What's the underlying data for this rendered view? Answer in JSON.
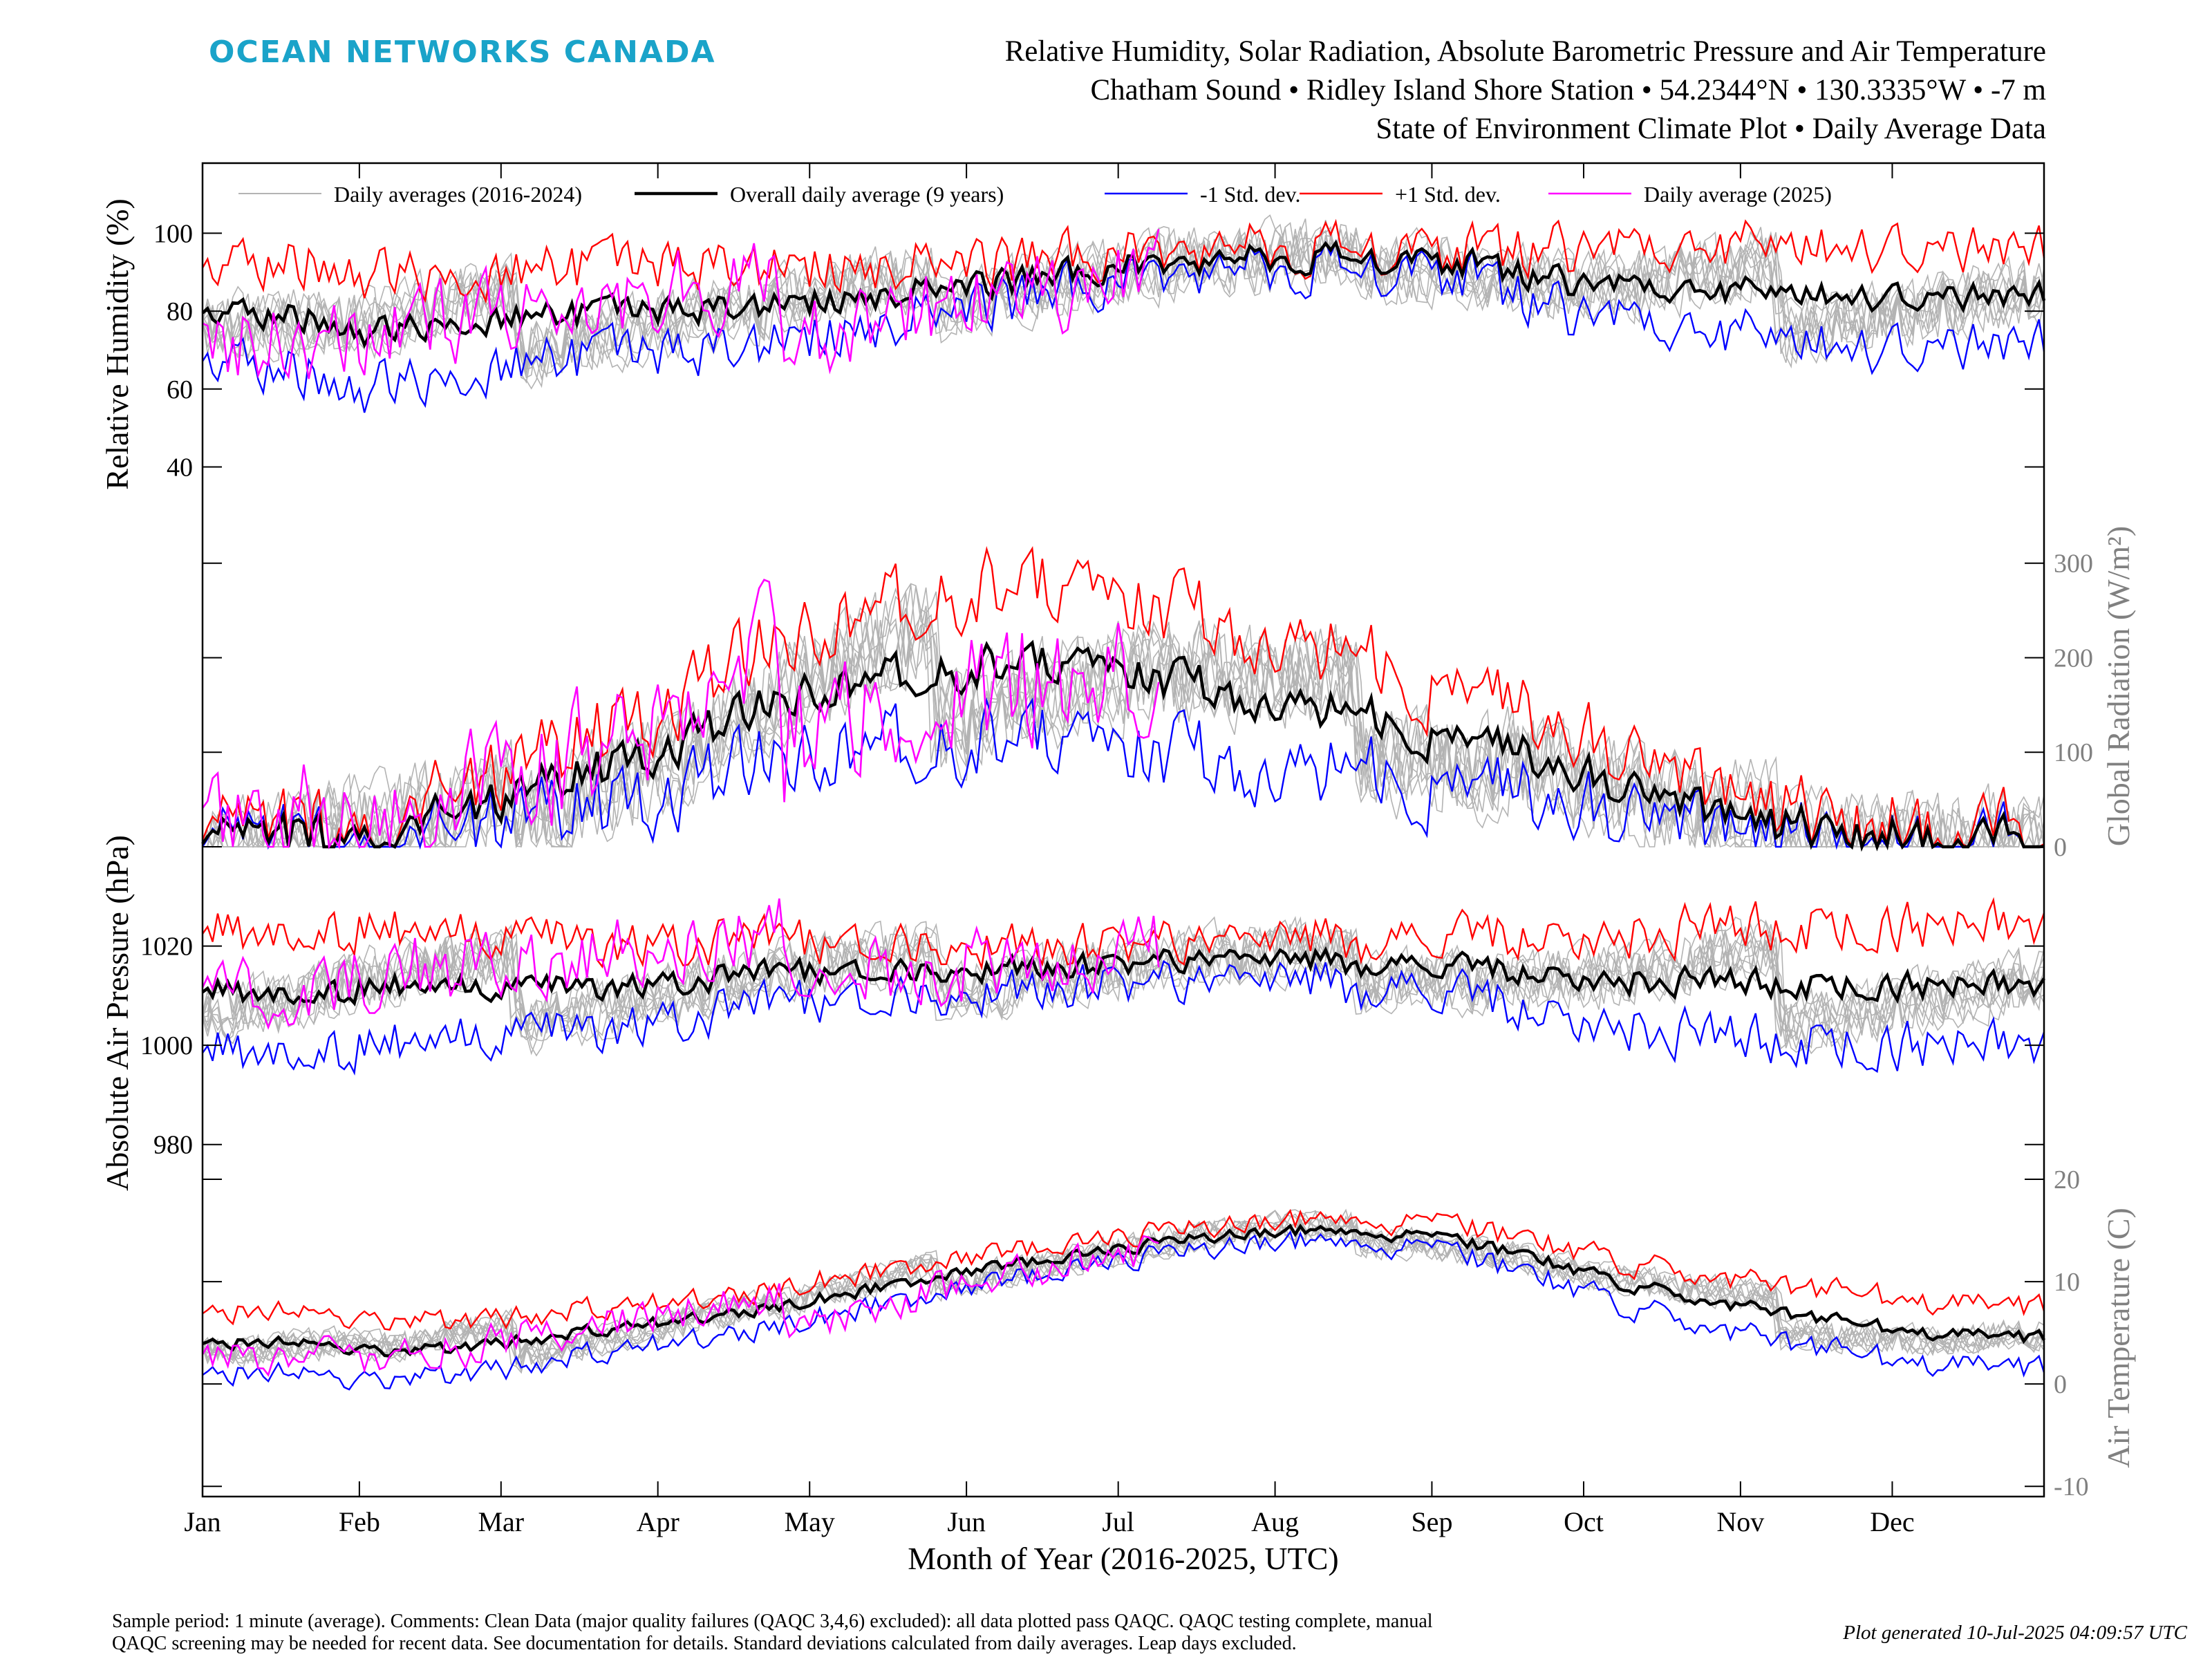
{
  "header": {
    "logo_text": "OCEAN NETWORKS CANADA",
    "logo_color": "#1aa3c9",
    "title_lines": [
      "Relative Humidity, Solar Radiation, Absolute Barometric Pressure and Air Temperature",
      "Chatham Sound • Ridley Island Shore Station • 54.2344°N • 130.3335°W • -7 m",
      "State of Environment Climate Plot • Daily Average Data"
    ]
  },
  "footer": {
    "note_line_1": "Sample period: 1 minute (average). Comments: Clean Data (major quality failures (QAQC 3,4,6) excluded): all data plotted pass QAQC. QAQC testing complete, manual",
    "note_line_2": "QAQC screening may be needed for recent data. See documentation for details. Standard deviations calculated from daily averages. Leap days excluded.",
    "plot_generated": "Plot generated 10-Jul-2025 04:09:57 UTC"
  },
  "chart_data": {
    "type": "line",
    "x_axis": {
      "label": "Month of Year (2016-2025, UTC)",
      "unit": "day of year",
      "range": [
        1,
        365
      ],
      "ticks": [
        {
          "label": "Jan",
          "day": 1
        },
        {
          "label": "Feb",
          "day": 32
        },
        {
          "label": "Mar",
          "day": 60
        },
        {
          "label": "Apr",
          "day": 91
        },
        {
          "label": "May",
          "day": 121
        },
        {
          "label": "Jun",
          "day": 152
        },
        {
          "label": "Jul",
          "day": 182
        },
        {
          "label": "Aug",
          "day": 213
        },
        {
          "label": "Sep",
          "day": 244
        },
        {
          "label": "Oct",
          "day": 274
        },
        {
          "label": "Nov",
          "day": 305
        },
        {
          "label": "Dec",
          "day": 335
        }
      ]
    },
    "legend": {
      "placement": "top",
      "entries": [
        {
          "label": "Daily averages (2016-2024)",
          "color": "#b3b3b3"
        },
        {
          "label": "Overall daily average (9 years)",
          "color": "#000000"
        },
        {
          "label": "-1 Std. dev.",
          "color": "#0000ff"
        },
        {
          "label": "+1 Std. dev.",
          "color": "#ff0000"
        },
        {
          "label": "Daily average (2025)",
          "color": "#ff00ff"
        }
      ]
    },
    "colors": {
      "historical": "#b3b3b3",
      "mean": "#000000",
      "minus_sd": "#0000ff",
      "plus_sd": "#ff0000",
      "current_year": "#ff00ff",
      "right_axis_text": "#808080"
    },
    "current_year_last_day": 190,
    "panels": [
      {
        "id": "humidity",
        "ylabel": "Relative Humidity (%)",
        "side": "left",
        "ylim": [
          25,
          118
        ],
        "ticks": [
          40,
          60,
          80,
          100
        ],
        "keypoints": [
          [
            1,
            80
          ],
          [
            20,
            79
          ],
          [
            35,
            74
          ],
          [
            50,
            78
          ],
          [
            75,
            79
          ],
          [
            100,
            80
          ],
          [
            125,
            83
          ],
          [
            150,
            86
          ],
          [
            170,
            89
          ],
          [
            190,
            92
          ],
          [
            205,
            93
          ],
          [
            225,
            94
          ],
          [
            245,
            93
          ],
          [
            260,
            90
          ],
          [
            275,
            86
          ],
          [
            300,
            85
          ],
          [
            330,
            84
          ],
          [
            365,
            84
          ]
        ],
        "sd_keypoints": [
          [
            1,
            12
          ],
          [
            30,
            15
          ],
          [
            60,
            12
          ],
          [
            100,
            11
          ],
          [
            130,
            8
          ],
          [
            160,
            5
          ],
          [
            190,
            3
          ],
          [
            220,
            2.5
          ],
          [
            250,
            3
          ],
          [
            270,
            8
          ],
          [
            300,
            11
          ],
          [
            330,
            13
          ],
          [
            365,
            12
          ]
        ],
        "noise": 3.5,
        "current_offset": -2
      },
      {
        "id": "radiation",
        "ylabel": "Global Radiation (W/m²)",
        "side": "right",
        "ylim": [
          0,
          340
        ],
        "ticks": [
          0,
          100,
          200,
          300
        ],
        "keypoints": [
          [
            1,
            6
          ],
          [
            20,
            10
          ],
          [
            40,
            22
          ],
          [
            60,
            45
          ],
          [
            80,
            85
          ],
          [
            100,
            120
          ],
          [
            120,
            165
          ],
          [
            140,
            180
          ],
          [
            160,
            190
          ],
          [
            180,
            195
          ],
          [
            200,
            170
          ],
          [
            220,
            150
          ],
          [
            240,
            125
          ],
          [
            260,
            100
          ],
          [
            275,
            70
          ],
          [
            290,
            45
          ],
          [
            305,
            28
          ],
          [
            320,
            15
          ],
          [
            340,
            8
          ],
          [
            365,
            6
          ]
        ],
        "sd_keypoints": [
          [
            1,
            6
          ],
          [
            30,
            10
          ],
          [
            60,
            25
          ],
          [
            90,
            45
          ],
          [
            120,
            65
          ],
          [
            150,
            80
          ],
          [
            180,
            80
          ],
          [
            210,
            70
          ],
          [
            240,
            55
          ],
          [
            270,
            40
          ],
          [
            300,
            20
          ],
          [
            330,
            10
          ],
          [
            365,
            7
          ]
        ],
        "noise": 22,
        "current_offset": 10
      },
      {
        "id": "pressure",
        "ylabel": "Absolute Air Pressure (hPa)",
        "side": "left",
        "ylim": [
          973,
          1040
        ],
        "ticks": [
          980,
          1000,
          1020
        ],
        "keypoints": [
          [
            1,
            1011
          ],
          [
            20,
            1010
          ],
          [
            40,
            1012
          ],
          [
            60,
            1011
          ],
          [
            90,
            1012
          ],
          [
            120,
            1015
          ],
          [
            150,
            1015
          ],
          [
            180,
            1016
          ],
          [
            200,
            1018
          ],
          [
            220,
            1017
          ],
          [
            240,
            1016
          ],
          [
            260,
            1015
          ],
          [
            280,
            1013
          ],
          [
            300,
            1013
          ],
          [
            320,
            1012
          ],
          [
            340,
            1012
          ],
          [
            365,
            1012
          ]
        ],
        "sd_keypoints": [
          [
            1,
            12
          ],
          [
            30,
            12
          ],
          [
            60,
            10
          ],
          [
            90,
            8
          ],
          [
            120,
            6
          ],
          [
            150,
            5
          ],
          [
            180,
            4
          ],
          [
            210,
            4
          ],
          [
            240,
            5
          ],
          [
            270,
            8
          ],
          [
            300,
            11
          ],
          [
            330,
            12
          ],
          [
            365,
            12
          ]
        ],
        "noise": 2.5,
        "current_offset": 3
      },
      {
        "id": "temperature",
        "ylabel": "Air Temperature (C)",
        "side": "right",
        "ylim": [
          -11,
          20
        ],
        "ticks": [
          -10,
          0,
          10,
          20
        ],
        "keypoints": [
          [
            1,
            4
          ],
          [
            20,
            4
          ],
          [
            40,
            3
          ],
          [
            60,
            4
          ],
          [
            90,
            6
          ],
          [
            120,
            8
          ],
          [
            150,
            11
          ],
          [
            180,
            13
          ],
          [
            200,
            14.5
          ],
          [
            220,
            15
          ],
          [
            240,
            14.5
          ],
          [
            260,
            13
          ],
          [
            280,
            10
          ],
          [
            300,
            8
          ],
          [
            320,
            6.5
          ],
          [
            340,
            5
          ],
          [
            365,
            4.5
          ]
        ],
        "sd_keypoints": [
          [
            1,
            3
          ],
          [
            30,
            3
          ],
          [
            60,
            2.5
          ],
          [
            90,
            2
          ],
          [
            120,
            1.8
          ],
          [
            150,
            1.5
          ],
          [
            180,
            1.2
          ],
          [
            210,
            1
          ],
          [
            240,
            1.2
          ],
          [
            270,
            1.8
          ],
          [
            300,
            2.5
          ],
          [
            330,
            3
          ],
          [
            365,
            3
          ]
        ],
        "noise": 0.6,
        "current_offset": -0.5
      }
    ]
  }
}
